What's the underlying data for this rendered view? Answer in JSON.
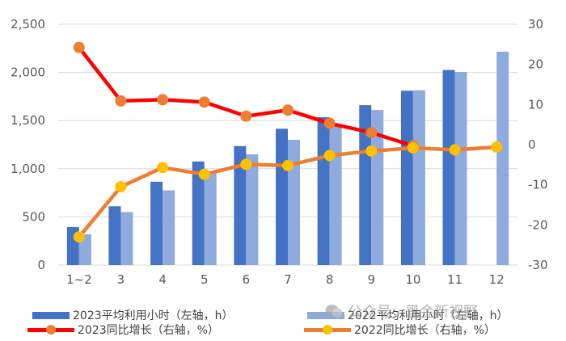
{
  "chart_data": {
    "type": "bar",
    "categories": [
      "1~2",
      "3",
      "4",
      "5",
      "6",
      "7",
      "8",
      "9",
      "10",
      "11",
      "12"
    ],
    "y_left": {
      "ticks": [
        "0",
        "500",
        "1,000",
        "1,500",
        "2,000",
        "2,500"
      ],
      "ylim": [
        0,
        2500
      ]
    },
    "y_right": {
      "ticks": [
        "-30",
        "-20",
        "-10",
        "0",
        "10",
        "20",
        "30"
      ],
      "ylim": [
        -30,
        30
      ]
    },
    "grid": true,
    "legend_position": "bottom",
    "series": [
      {
        "name": "2023平均利用小时（左轴，h）",
        "kind": "bar",
        "axis": "left",
        "color": "#4472C4",
        "values": [
          395,
          610,
          865,
          1075,
          1235,
          1415,
          1535,
          1660,
          1810,
          2025,
          null
        ]
      },
      {
        "name": "2022平均利用小时（左轴，h）",
        "kind": "bar",
        "axis": "left",
        "color": "#8FAADC",
        "values": [
          320,
          550,
          775,
          960,
          1150,
          1300,
          1450,
          1610,
          1815,
          2005,
          2215
        ]
      },
      {
        "name": "2023同比增长（右轴，%）",
        "kind": "line",
        "axis": "right",
        "color": "#FF0000",
        "marker": "#ED7D31",
        "values": [
          24.2,
          10.9,
          11.2,
          10.6,
          7.1,
          8.6,
          5.3,
          3.0,
          -0.3,
          null,
          null
        ]
      },
      {
        "name": "2022同比增长（右轴，%）",
        "kind": "line",
        "axis": "right",
        "color": "#ED7D31",
        "marker": "#FFC000",
        "values": [
          -23.0,
          -10.5,
          -5.7,
          -7.4,
          -4.9,
          -5.2,
          -2.7,
          -1.6,
          -0.8,
          -1.3,
          -0.6
        ]
      }
    ]
  },
  "watermark": {
    "text": "公众号 · 黑金新视野"
  }
}
